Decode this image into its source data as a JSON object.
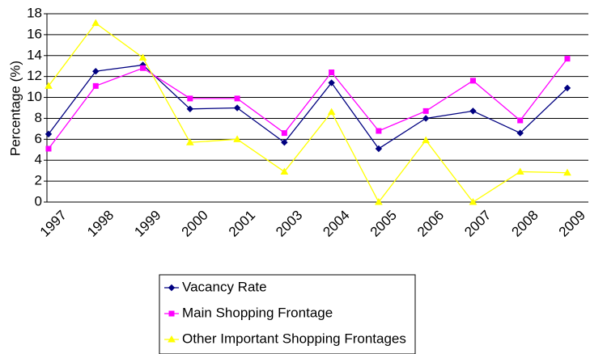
{
  "chart_data": {
    "type": "line",
    "y_label": "Percentage (%)",
    "categories": [
      "1997",
      "1998",
      "1999",
      "2000",
      "2001",
      "2003",
      "2004",
      "2005",
      "2006",
      "2007",
      "2008",
      "2009"
    ],
    "series": [
      {
        "name": "Vacancy Rate",
        "color": "#000080",
        "marker": "diamond",
        "values": [
          6.5,
          12.5,
          13.1,
          8.9,
          9.0,
          5.7,
          11.4,
          5.1,
          8.0,
          8.7,
          6.6,
          10.9
        ]
      },
      {
        "name": "Main Shopping Frontage",
        "color": "#ff00ff",
        "marker": "square",
        "values": [
          5.1,
          11.1,
          12.8,
          9.9,
          9.9,
          6.6,
          12.4,
          6.8,
          8.7,
          11.6,
          7.8,
          13.7
        ]
      },
      {
        "name": "Other Important Shopping Frontages",
        "color": "#ffff00",
        "marker": "triangle",
        "values": [
          11.1,
          17.1,
          13.8,
          5.7,
          6.0,
          2.9,
          8.6,
          0,
          5.9,
          0,
          2.9,
          2.8
        ]
      }
    ],
    "ylim": [
      0,
      18
    ],
    "yticks": [
      0,
      2,
      4,
      6,
      8,
      10,
      12,
      14,
      16,
      18
    ],
    "grid": true,
    "legend": "bottom"
  }
}
